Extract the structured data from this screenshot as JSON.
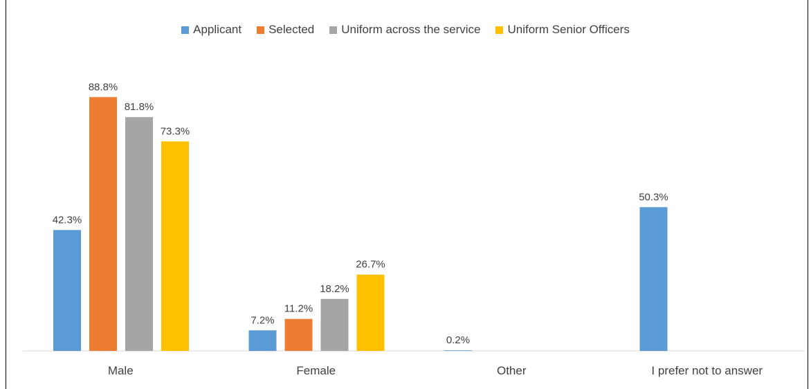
{
  "chart_data": {
    "type": "bar",
    "title": "",
    "xlabel": "",
    "ylabel": "",
    "ylim": [
      0,
      100
    ],
    "grid": false,
    "legend_position": "top",
    "categories": [
      "Male",
      "Female",
      "Other",
      "I prefer not to answer"
    ],
    "series": [
      {
        "name": "Applicant",
        "color": "#5B9BD5",
        "values": [
          42.3,
          7.2,
          0.2,
          50.3
        ],
        "labels": [
          "42.3%",
          "7.2%",
          "0.2%",
          "50.3%"
        ]
      },
      {
        "name": "Selected",
        "color": "#ED7D31",
        "values": [
          88.8,
          11.2,
          null,
          null
        ],
        "labels": [
          "88.8%",
          "11.2%",
          null,
          null
        ]
      },
      {
        "name": "Uniform across the service",
        "color": "#A5A5A5",
        "values": [
          81.8,
          18.2,
          null,
          null
        ],
        "labels": [
          "81.8%",
          "18.2%",
          null,
          null
        ]
      },
      {
        "name": "Uniform Senior Officers",
        "color": "#FFC000",
        "values": [
          73.3,
          26.7,
          null,
          null
        ],
        "labels": [
          "73.3%",
          "26.7%",
          null,
          null
        ]
      }
    ]
  }
}
